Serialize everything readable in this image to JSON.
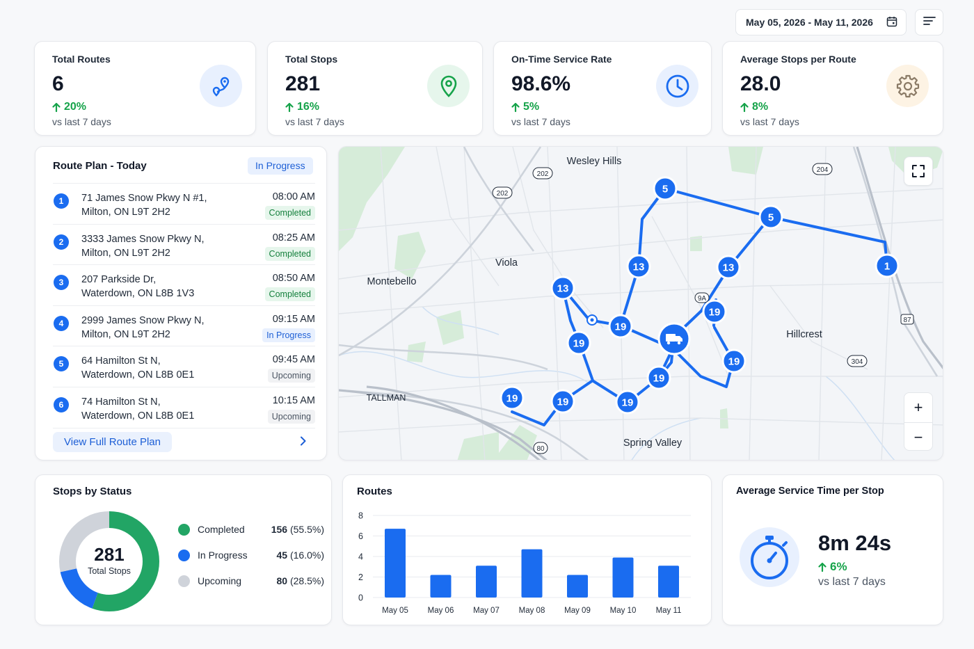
{
  "header": {
    "date_range": "May 05, 2026 - May 11, 2026",
    "calendar_icon": "calendar-icon",
    "filter_icon": "filter-icon"
  },
  "kpis": [
    {
      "label": "Total Routes",
      "value": "6",
      "delta": "20%",
      "sub": "vs last 7 days",
      "icon": "route-icon",
      "icon_bg": "#e8f0fe",
      "icon_color": "#1a6cf0"
    },
    {
      "label": "Total Stops",
      "value": "281",
      "delta": "16%",
      "sub": "vs last 7 days",
      "icon": "location-pin-icon",
      "icon_bg": "#e6f6ec",
      "icon_color": "#16a34a"
    },
    {
      "label": "On-Time Service Rate",
      "value": "98.6%",
      "delta": "5%",
      "sub": "vs last 7 days",
      "icon": "clock-icon",
      "icon_bg": "#e8f0fe",
      "icon_color": "#1a6cf0"
    },
    {
      "label": "Average Stops per Route",
      "value": "28.0",
      "delta": "8%",
      "sub": "vs last 7 days",
      "icon": "gear-icon",
      "icon_bg": "#fdf3e4",
      "icon_color": "#8a7a66"
    }
  ],
  "route_plan": {
    "title": "Route Plan - Today",
    "status": "In Progress",
    "stops": [
      {
        "num": "1",
        "line1": "71 James Snow Pkwy N #1,",
        "line2": "Milton, ON L9T 2H2",
        "time": "08:00 AM",
        "status": "Completed"
      },
      {
        "num": "2",
        "line1": "3333 James Snow Pkwy N,",
        "line2": "Milton, ON L9T 2H2",
        "time": "08:25 AM",
        "status": "Completed"
      },
      {
        "num": "3",
        "line1": "207 Parkside Dr,",
        "line2": "Waterdown, ON L8B 1V3",
        "time": "08:50 AM",
        "status": "Completed"
      },
      {
        "num": "4",
        "line1": "2999 James Snow Pkwy N,",
        "line2": "Milton, ON L9T 2H2",
        "time": "09:15 AM",
        "status": "In Progress"
      },
      {
        "num": "5",
        "line1": "64 Hamilton St N,",
        "line2": "Waterdown, ON L8B 0E1",
        "time": "09:45 AM",
        "status": "Upcoming"
      },
      {
        "num": "6",
        "line1": "74 Hamilton St N,",
        "line2": "Waterdown, ON L8B 0E1",
        "time": "10:15 AM",
        "status": "Upcoming"
      }
    ],
    "view_all": "View Full Route Plan"
  },
  "map": {
    "places": [
      "Wesley Hills",
      "Viola",
      "Montebello",
      "Hillcrest",
      "TALLMAN",
      "Spring Valley"
    ],
    "road_shields": [
      "202",
      "202",
      "204",
      "87",
      "304",
      "80",
      "9A"
    ],
    "stop_markers": [
      "5",
      "5",
      "1",
      "13",
      "13",
      "13",
      "19",
      "19",
      "19",
      "19",
      "19",
      "19",
      "19",
      "19",
      "19"
    ],
    "zoom_in": "+",
    "zoom_out": "−"
  },
  "stops_by_status": {
    "title": "Stops by Status",
    "total": "281",
    "total_label": "Total Stops",
    "items": [
      {
        "name": "Completed",
        "count": "156",
        "pct": "(55.5%)",
        "value": 156,
        "color": "#22a565"
      },
      {
        "name": "In Progress",
        "count": "45",
        "pct": "(16.0%)",
        "value": 45,
        "color": "#1a6cf0"
      },
      {
        "name": "Upcoming",
        "count": "80",
        "pct": "(28.5%)",
        "value": 80,
        "color": "#cfd3da"
      }
    ]
  },
  "routes_chart": {
    "title": "Routes"
  },
  "chart_data": {
    "type": "bar",
    "categories": [
      "May 05",
      "May 06",
      "May 07",
      "May 08",
      "May 09",
      "May 10",
      "May 11"
    ],
    "values": [
      6.7,
      2.2,
      3.1,
      4.7,
      2.2,
      3.9,
      3.1
    ],
    "title": "Routes",
    "xlabel": "",
    "ylabel": "",
    "ylim": [
      0,
      8
    ],
    "yticks": [
      "0",
      "2",
      "4",
      "6",
      "8"
    ],
    "grid": true,
    "color": "#1a6cf0"
  },
  "avg_service": {
    "title": "Average Service Time per Stop",
    "value": "8m 24s",
    "delta": "6%",
    "sub": "vs last 7 days",
    "icon": "stopwatch-icon"
  }
}
